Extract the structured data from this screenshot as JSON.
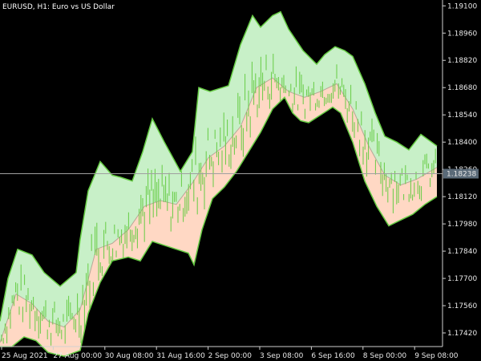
{
  "chart_data": {
    "type": "line",
    "title": "EURUSD, H1:  Euro vs US Dollar",
    "x_ticks": [
      "25 Aug 2021",
      "27 Aug 00:00",
      "30 Aug 08:00",
      "31 Aug 16:00",
      "2 Sep 00:00",
      "3 Sep 08:00",
      "6 Sep 16:00",
      "8 Sep 00:00",
      "9 Sep 08:00"
    ],
    "y_ticks": [
      "1.19100",
      "1.18960",
      "1.18820",
      "1.18680",
      "1.18540",
      "1.18400",
      "1.18260",
      "1.18120",
      "1.17980",
      "1.17840",
      "1.17700",
      "1.17560",
      "1.17420"
    ],
    "ylim": [
      1.1735,
      1.1913
    ],
    "current_price": "1.18238",
    "current_price_value": 1.18238,
    "colors": {
      "background": "#000000",
      "upper_fill": "#c8f0c8",
      "lower_fill": "#ffd8c4",
      "band_edge": "#66cc44",
      "candles": "#66cc44",
      "crosshair": "#a0a0a0",
      "price_label_bg": "#5a6a78"
    },
    "series": [
      {
        "key": "upper",
        "points": [
          [
            0,
            1.1748
          ],
          [
            10,
            1.177
          ],
          [
            22,
            1.1785
          ],
          [
            40,
            1.1782
          ],
          [
            55,
            1.1773
          ],
          [
            75,
            1.1766
          ],
          [
            95,
            1.1773
          ],
          [
            100,
            1.179
          ],
          [
            110,
            1.1815
          ],
          [
            125,
            1.183
          ],
          [
            140,
            1.1823
          ],
          [
            150,
            1.1822
          ],
          [
            165,
            1.182
          ],
          [
            178,
            1.1835
          ],
          [
            190,
            1.1852
          ],
          [
            205,
            1.184
          ],
          [
            225,
            1.1825
          ],
          [
            240,
            1.1835
          ],
          [
            248,
            1.1868
          ],
          [
            262,
            1.1866
          ],
          [
            285,
            1.1869
          ],
          [
            300,
            1.189
          ],
          [
            315,
            1.1905
          ],
          [
            325,
            1.1899
          ],
          [
            340,
            1.1905
          ],
          [
            350,
            1.1907
          ],
          [
            360,
            1.1898
          ],
          [
            378,
            1.1887
          ],
          [
            395,
            1.188
          ],
          [
            405,
            1.1885
          ],
          [
            418,
            1.1889
          ],
          [
            430,
            1.1887
          ],
          [
            440,
            1.1884
          ],
          [
            455,
            1.187
          ],
          [
            468,
            1.1855
          ],
          [
            480,
            1.1843
          ],
          [
            495,
            1.184
          ],
          [
            510,
            1.1836
          ],
          [
            525,
            1.1844
          ],
          [
            545,
            1.1838
          ]
        ]
      },
      {
        "key": "middle",
        "points": [
          [
            0,
            1.1737
          ],
          [
            20,
            1.1762
          ],
          [
            40,
            1.1757
          ],
          [
            60,
            1.1748
          ],
          [
            80,
            1.1745
          ],
          [
            100,
            1.1754
          ],
          [
            120,
            1.1785
          ],
          [
            140,
            1.1788
          ],
          [
            160,
            1.1795
          ],
          [
            180,
            1.1807
          ],
          [
            200,
            1.181
          ],
          [
            220,
            1.1808
          ],
          [
            240,
            1.1819
          ],
          [
            260,
            1.1832
          ],
          [
            280,
            1.1838
          ],
          [
            300,
            1.1848
          ],
          [
            320,
            1.1868
          ],
          [
            340,
            1.1873
          ],
          [
            360,
            1.1866
          ],
          [
            380,
            1.1863
          ],
          [
            400,
            1.1866
          ],
          [
            420,
            1.187
          ],
          [
            440,
            1.1857
          ],
          [
            460,
            1.1838
          ],
          [
            480,
            1.1823
          ],
          [
            500,
            1.1818
          ],
          [
            520,
            1.1821
          ],
          [
            545,
            1.1827
          ]
        ]
      },
      {
        "key": "lower",
        "points": [
          [
            0,
            1.1735
          ],
          [
            15,
            1.1735
          ],
          [
            30,
            1.174
          ],
          [
            45,
            1.1738
          ],
          [
            60,
            1.1732
          ],
          [
            80,
            1.173
          ],
          [
            100,
            1.1733
          ],
          [
            110,
            1.1752
          ],
          [
            125,
            1.1768
          ],
          [
            140,
            1.1779
          ],
          [
            150,
            1.178
          ],
          [
            160,
            1.1781
          ],
          [
            175,
            1.1779
          ],
          [
            190,
            1.1789
          ],
          [
            205,
            1.1787
          ],
          [
            220,
            1.1785
          ],
          [
            235,
            1.1783
          ],
          [
            242,
            1.1777
          ],
          [
            252,
            1.1795
          ],
          [
            265,
            1.1811
          ],
          [
            280,
            1.1817
          ],
          [
            295,
            1.1825
          ],
          [
            310,
            1.1835
          ],
          [
            325,
            1.1845
          ],
          [
            340,
            1.1857
          ],
          [
            355,
            1.1863
          ],
          [
            365,
            1.1855
          ],
          [
            375,
            1.1851
          ],
          [
            385,
            1.185
          ],
          [
            400,
            1.1854
          ],
          [
            415,
            1.1858
          ],
          [
            425,
            1.1855
          ],
          [
            440,
            1.184
          ],
          [
            455,
            1.182
          ],
          [
            470,
            1.1807
          ],
          [
            485,
            1.1797
          ],
          [
            500,
            1.18
          ],
          [
            515,
            1.1803
          ],
          [
            530,
            1.1808
          ],
          [
            545,
            1.1812
          ]
        ]
      }
    ]
  }
}
